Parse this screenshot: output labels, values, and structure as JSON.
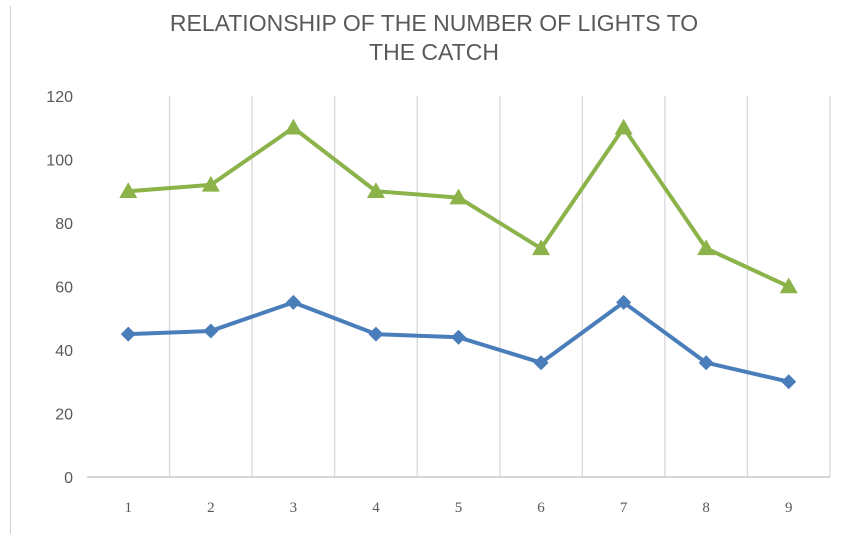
{
  "chart_data": {
    "type": "line",
    "title_lines": [
      "RELATIONSHIP OF THE NUMBER OF LIGHTS TO",
      "THE CATCH"
    ],
    "categories": [
      "1",
      "2",
      "3",
      "4",
      "5",
      "6",
      "7",
      "8",
      "9"
    ],
    "ylim": [
      0,
      120
    ],
    "yticks": [
      "0",
      "20",
      "40",
      "60",
      "80",
      "100",
      "120"
    ],
    "xlabel": "",
    "ylabel": "",
    "grid": "vertical",
    "legend": "none",
    "series": [
      {
        "values": [
          90,
          92,
          110,
          90,
          88,
          72,
          110,
          72,
          60
        ],
        "color": "#8CB24A",
        "marker": "triangle"
      },
      {
        "values": [
          45,
          46,
          55,
          45,
          44,
          36,
          55,
          36,
          30
        ],
        "color": "#4A7EBB",
        "marker": "diamond"
      }
    ],
    "colors": {
      "grid": "#d9d9d9",
      "axis": "#bfbfbf",
      "text": "#595959"
    }
  }
}
